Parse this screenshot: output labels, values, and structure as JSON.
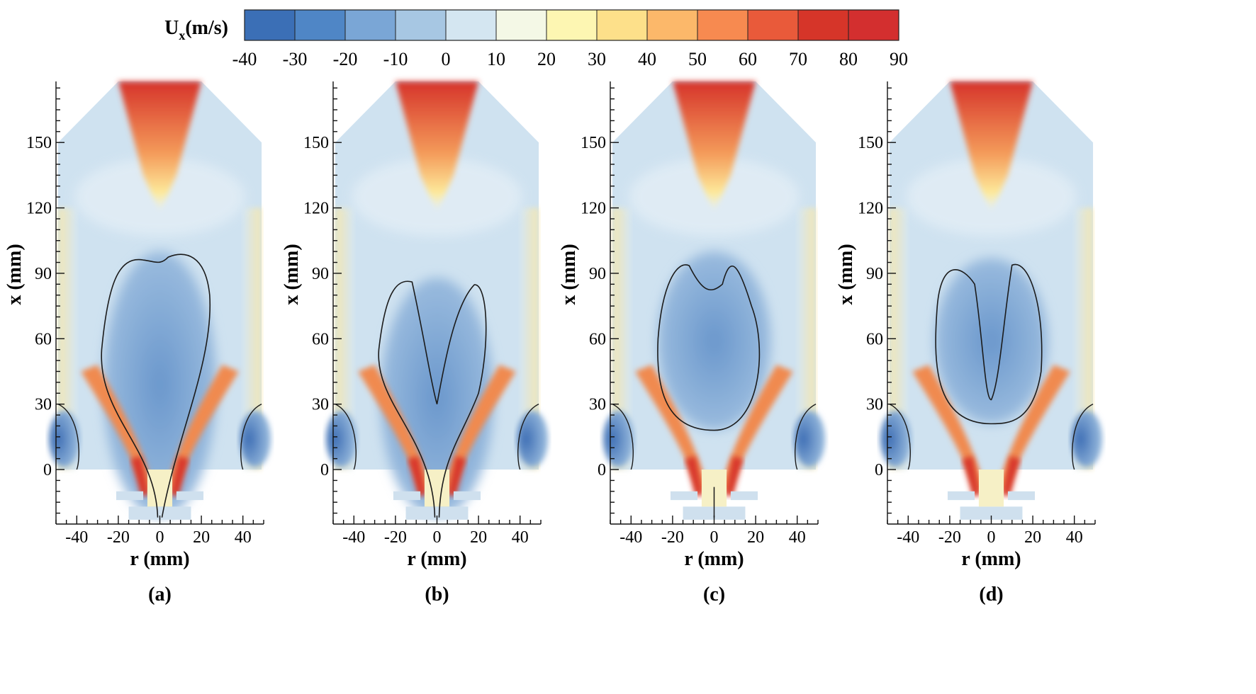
{
  "colorbar": {
    "label_main": "U",
    "label_sub": "x",
    "label_unit": "(m/s)",
    "ticks": [
      "-40",
      "-30",
      "-20",
      "-10",
      "0",
      "10",
      "20",
      "30",
      "40",
      "50",
      "60",
      "70",
      "80",
      "90"
    ],
    "colors": [
      "#3b6fb6",
      "#4f86c6",
      "#7aa6d6",
      "#a7c7e3",
      "#d4e6f1",
      "#f4f8e6",
      "#fdf6b2",
      "#fde08a",
      "#fcb86a",
      "#f78a50",
      "#e95a3a",
      "#d63529",
      "#d32f2f"
    ]
  },
  "chart_data": [
    {
      "type": "heatmap",
      "panel_label": "(a)",
      "xlabel": "r (mm)",
      "ylabel": "x (mm)",
      "xlim": [
        -50,
        50
      ],
      "ylim": [
        -25,
        178
      ],
      "xticks": [
        "-40",
        "-20",
        "0",
        "20",
        "40"
      ],
      "yticks": [
        "0",
        "30",
        "60",
        "90",
        "120",
        "150"
      ],
      "zero_contour": {
        "shape": "single-lobe",
        "top": 100,
        "bottom": -22,
        "notch_top": null
      }
    },
    {
      "type": "heatmap",
      "panel_label": "(b)",
      "xlabel": "r (mm)",
      "ylabel": "x (mm)",
      "xlim": [
        -50,
        50
      ],
      "ylim": [
        -25,
        178
      ],
      "xticks": [
        "-40",
        "-20",
        "0",
        "20",
        "40"
      ],
      "yticks": [
        "0",
        "30",
        "60",
        "90",
        "120",
        "150"
      ],
      "zero_contour": {
        "shape": "v-shape",
        "top": 88,
        "bottom": -22,
        "notch_top": 30
      }
    },
    {
      "type": "heatmap",
      "panel_label": "(c)",
      "xlabel": "r (mm)",
      "ylabel": "x (mm)",
      "xlim": [
        -50,
        50
      ],
      "ylim": [
        -25,
        178
      ],
      "xticks": [
        "-40",
        "-20",
        "0",
        "20",
        "40"
      ],
      "yticks": [
        "0",
        "30",
        "60",
        "90",
        "120",
        "150"
      ],
      "zero_contour": {
        "shape": "closed-bubble",
        "top": 100,
        "bottom": 18,
        "notch_top": 80
      }
    },
    {
      "type": "heatmap",
      "panel_label": "(d)",
      "xlabel": "r (mm)",
      "ylabel": "x (mm)",
      "xlim": [
        -50,
        50
      ],
      "ylim": [
        -25,
        178
      ],
      "xticks": [
        "-40",
        "-20",
        "0",
        "20",
        "40"
      ],
      "yticks": [
        "0",
        "30",
        "60",
        "90",
        "120",
        "150"
      ],
      "zero_contour": {
        "shape": "u-shape",
        "top": 97,
        "bottom": 21,
        "notch_top": 32
      }
    }
  ]
}
